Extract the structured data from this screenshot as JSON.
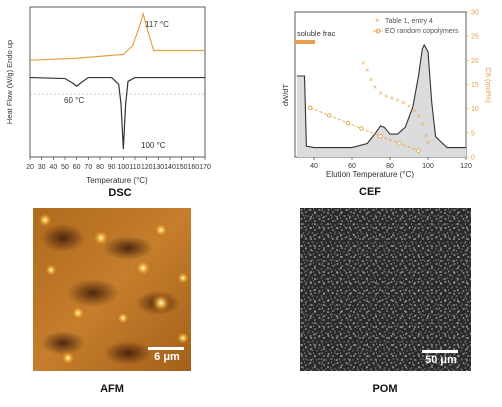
{
  "chart_data": [
    {
      "type": "line",
      "title": "DSC",
      "xlabel": "Temperature (°C)",
      "ylabel": "Heat Flow (W/g)  Endo up",
      "xlim": [
        20,
        170
      ],
      "xticks": [
        "20",
        "30",
        "40",
        "50",
        "60",
        "70",
        "80",
        "90",
        "100",
        "110",
        "120",
        "130",
        "140",
        "150",
        "160",
        "170"
      ],
      "annotations": [
        "117 °C",
        "60 °C",
        "100 °C"
      ],
      "series": [
        {
          "color": "#e8a04a",
          "x": [
            20,
            60,
            100,
            108,
            113,
            117,
            121,
            126,
            170
          ],
          "y": [
            0.3,
            0.32,
            0.36,
            0.45,
            0.62,
            0.78,
            0.6,
            0.4,
            0.4
          ]
        },
        {
          "color": "#333333",
          "x": [
            20,
            50,
            57,
            60,
            63,
            70,
            90,
            96,
            98,
            100,
            102,
            104,
            110,
            170
          ],
          "y": [
            0.12,
            0.11,
            0.06,
            0.03,
            0.06,
            0.12,
            0.12,
            0.05,
            -0.15,
            -0.62,
            -0.15,
            0.08,
            0.12,
            0.12
          ]
        }
      ]
    },
    {
      "type": "line",
      "title": "CEF",
      "xlabel": "Elution Temperature (°C)",
      "ylabel": "dW/dT",
      "y2label": "C8 (mol%)",
      "xlim": [
        30,
        120
      ],
      "y2lim": [
        0,
        30
      ],
      "xticks": [
        "40",
        "60",
        "80",
        "100",
        "120"
      ],
      "y2ticks": [
        "0",
        "5",
        "10",
        "15",
        "20",
        "25",
        "30"
      ],
      "annotations": [
        "soluble frac"
      ],
      "legend": [
        "Table 1, entry 4",
        "EO random copolymers"
      ],
      "legend_position": "top-right",
      "series": [
        {
          "name": "dW/dT",
          "color": "#333333",
          "x": [
            31,
            35,
            36,
            40,
            60,
            68,
            72,
            75,
            77,
            80,
            84,
            88,
            92,
            95,
            97,
            98,
            100,
            102,
            104,
            110,
            120
          ],
          "y": [
            0.6,
            0.6,
            0.08,
            0.07,
            0.07,
            0.1,
            0.17,
            0.23,
            0.22,
            0.17,
            0.17,
            0.22,
            0.37,
            0.6,
            0.8,
            0.83,
            0.78,
            0.4,
            0.15,
            0.07,
            0.07
          ]
        },
        {
          "name": "Table 1, entry 4",
          "color": "#e8a04a",
          "x": [
            66,
            68,
            70,
            72,
            75,
            78,
            81,
            84,
            87,
            90,
            93,
            95,
            97,
            99,
            100
          ],
          "y": [
            19.5,
            18,
            16,
            14.5,
            13.2,
            12.6,
            12.2,
            11.8,
            11.3,
            10.6,
            9.6,
            8.5,
            6.8,
            4.5,
            3
          ]
        },
        {
          "name": "EO random copolymers",
          "color": "#e8a04a",
          "x": [
            38,
            48,
            58,
            65,
            75,
            85,
            95
          ],
          "y": [
            10.2,
            8.6,
            7.0,
            5.9,
            4.3,
            2.8,
            1.3
          ]
        }
      ]
    }
  ],
  "captions": {
    "dsc": "DSC",
    "cef": "CEF",
    "afm": "AFM",
    "pom": "POM"
  },
  "scalebars": {
    "afm": "6 μm",
    "pom": "50 μm"
  }
}
